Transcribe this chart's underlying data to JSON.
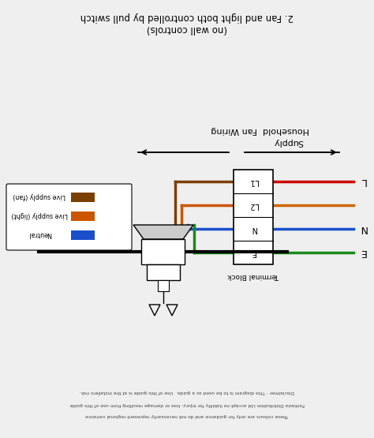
{
  "title_line1": "2. Fan and light both controlled by pull switch",
  "title_line2": "(no wall controls)",
  "bg_color": "#efefef",
  "supply_label_line1": "Household  Fan Wiring",
  "supply_label_line2": "Supply",
  "terminal_label": "Terminal Block",
  "wire_colors": {
    "L1": "#cc0000",
    "L2": "#cc6600",
    "N": "#1a4fcc",
    "E": "#1a8a1a"
  },
  "fan_wire_colors": {
    "brown": "#7B3F00",
    "orange": "#cc5500",
    "blue": "#1a4fcc",
    "green": "#1a8a1a"
  },
  "terminal_labels": [
    "L1",
    "L2",
    "N",
    "E"
  ],
  "right_labels": [
    "L",
    "",
    "N",
    "E"
  ],
  "legend_items": [
    {
      "label": "Live supply (fan)",
      "color": "#7B3F00"
    },
    {
      "label": "Live supply (light)",
      "color": "#cc5500"
    },
    {
      "label": "Neutral",
      "color": "#1a4fcc"
    }
  ],
  "disclaimer_lines": [
    "Disclaimer - This diagram is to be used as a guide.  Use of this guide is at the installers risk.",
    "Fantasia Distribution Ltd accept no liability for injury, loss or damage resulting from use of this guide",
    "These colours are only for guidance and do not necessarily represent regional variance"
  ]
}
